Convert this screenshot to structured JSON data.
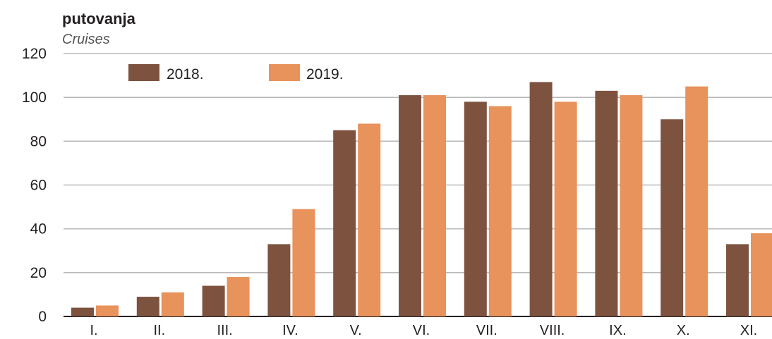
{
  "chart_data": {
    "type": "bar",
    "title": "putovanja",
    "subtitle": "Cruises",
    "xlabel": "",
    "ylabel": "",
    "ylim": [
      0,
      120
    ],
    "yticks": [
      0,
      20,
      40,
      60,
      80,
      100,
      120
    ],
    "grid": true,
    "legend_position": "top-left",
    "categories": [
      "I.",
      "II.",
      "III.",
      "IV.",
      "V.",
      "VI.",
      "VII.",
      "VIII.",
      "IX.",
      "X.",
      "XI."
    ],
    "series": [
      {
        "name": "2018.",
        "color": "#7d5340",
        "values": [
          4,
          9,
          14,
          33,
          85,
          101,
          98,
          107,
          103,
          90,
          33
        ]
      },
      {
        "name": "2019.",
        "color": "#e8925c",
        "values": [
          5,
          11,
          18,
          49,
          88,
          101,
          96,
          98,
          101,
          105,
          38
        ]
      }
    ]
  }
}
